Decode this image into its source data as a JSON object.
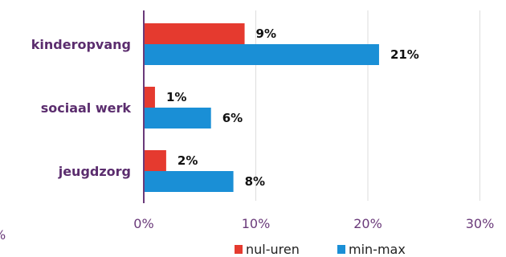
{
  "chart_data": {
    "type": "bar",
    "orientation": "horizontal",
    "categories": [
      "kinderopvang",
      "sociaal werk",
      "jeugdzorg"
    ],
    "series": [
      {
        "name": "nul-uren",
        "values": [
          9,
          1,
          2
        ],
        "labels": [
          "9%",
          "1%",
          "2%"
        ],
        "color": "#e53a2f"
      },
      {
        "name": "min-max",
        "values": [
          21,
          6,
          8
        ],
        "labels": [
          "21%",
          "6%",
          "8%"
        ],
        "color": "#1a8fd6"
      }
    ],
    "x_ticks": [
      {
        "value": 0,
        "label": "0%"
      },
      {
        "value": 10,
        "label": "10%"
      },
      {
        "value": 20,
        "label": "20%"
      },
      {
        "value": 30,
        "label": "30%"
      }
    ],
    "xlim": [
      0,
      30
    ],
    "stray_tick_label": "%",
    "grid": true,
    "legend_position": "bottom-right",
    "title": "",
    "xlabel": "",
    "ylabel": ""
  },
  "colors": {
    "category_label": "#5b2d6e",
    "axis_line": "#6a3a7a",
    "tick_label": "#6a3a7a",
    "gridline": "#dddddd"
  }
}
